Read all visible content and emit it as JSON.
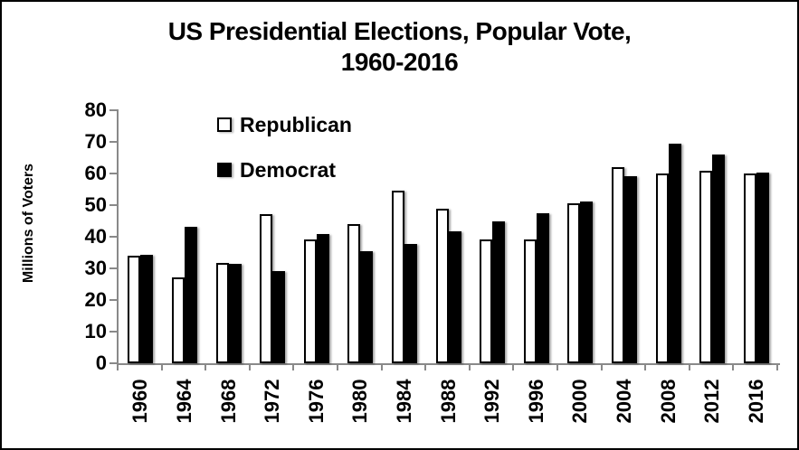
{
  "title": {
    "line1": "US Presidential Elections, Popular Vote,",
    "line2": "1960-2016"
  },
  "y_axis": {
    "label": "Millions of Voters",
    "ticks": [
      80,
      70,
      60,
      50,
      40,
      30,
      20,
      10,
      0
    ]
  },
  "legend": {
    "items": [
      "Republican",
      "Democrat"
    ]
  },
  "colors": {
    "republican_fill": "#ffffff",
    "democrat_fill": "#000000",
    "bar_border": "#000000",
    "axis": "#898989",
    "text": "#000000",
    "background": "#ffffff"
  },
  "chart_data": {
    "type": "bar",
    "title": "US Presidential Elections, Popular Vote, 1960-2016",
    "xlabel": "",
    "ylabel": "Millions of Voters",
    "ylim": [
      0,
      80
    ],
    "ytick_step": 10,
    "grid": false,
    "legend_position": "inside-top-left",
    "categories": [
      "1960",
      "1964",
      "1968",
      "1972",
      "1976",
      "1980",
      "1984",
      "1988",
      "1992",
      "1996",
      "2000",
      "2004",
      "2008",
      "2012",
      "2016"
    ],
    "series": [
      {
        "name": "Republican",
        "color": "#ffffff",
        "values": [
          34.1,
          27.2,
          31.8,
          47.2,
          39.1,
          43.9,
          54.5,
          48.9,
          39.1,
          39.2,
          50.5,
          62.0,
          60.0,
          60.9,
          60.0
        ]
      },
      {
        "name": "Democrat",
        "color": "#000000",
        "values": [
          34.2,
          43.1,
          31.3,
          29.2,
          40.8,
          35.5,
          37.6,
          41.8,
          44.9,
          47.4,
          51.0,
          59.0,
          69.5,
          65.9,
          60.4
        ]
      }
    ]
  }
}
